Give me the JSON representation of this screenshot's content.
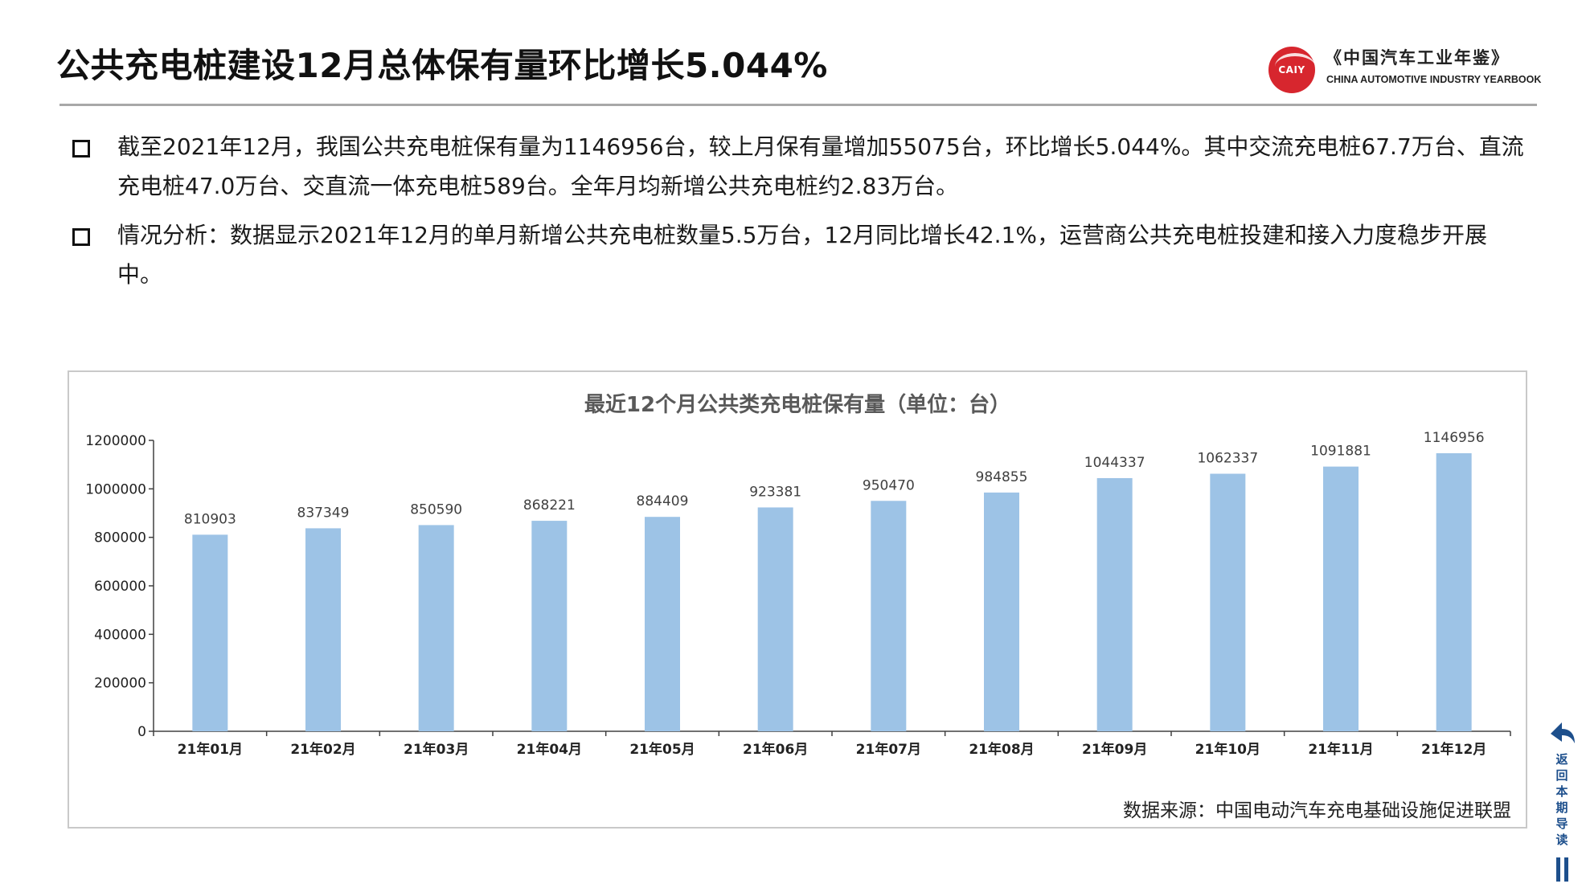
{
  "page": {
    "title": "公共充电桩建设12月总体保有量环比增长5.044%"
  },
  "logo": {
    "emblem": "CAIY",
    "cn": "《中国汽车工业年鉴》",
    "en": "CHINA AUTOMOTIVE INDUSTRY YEARBOOK",
    "color": "#d7262e"
  },
  "bullets": [
    "截至2021年12月，我国公共充电桩保有量为1146956台，较上月保有量增加55075台，环比增长5.044%。其中交流充电桩67.7万台、直流充电桩47.0万台、交直流一体充电桩589台。全年月均新增公共充电桩约2.83万台。",
    "情况分析：数据显示2021年12月的单月新增公共充电桩数量5.5万台，12月同比增长42.1%，运营商公共充电桩投建和接入力度稳步开展中。"
  ],
  "chart_data": {
    "type": "bar",
    "title": "最近12个月公共类充电桩保有量（单位：台）",
    "categories": [
      "21年01月",
      "21年02月",
      "21年03月",
      "21年04月",
      "21年05月",
      "21年06月",
      "21年07月",
      "21年08月",
      "21年09月",
      "21年10月",
      "21年11月",
      "21年12月"
    ],
    "values": [
      810903,
      837349,
      850590,
      868221,
      884409,
      923381,
      950470,
      984855,
      1044337,
      1062337,
      1091881,
      1146956
    ],
    "value_labels": [
      "810903",
      "837349",
      "850590",
      "868221",
      "884409",
      "923381",
      "950470",
      "984855",
      "1044337",
      "1062337",
      "1091881",
      "1146956"
    ],
    "yticks": [
      "0",
      "200000",
      "400000",
      "600000",
      "800000",
      "1000000",
      "1200000"
    ],
    "ylim": [
      0,
      1200000
    ],
    "grid": false,
    "legend": "none",
    "bar_color": "#9dc3e6",
    "source": "数据来源：中国电动汽车充电基础设施促进联盟"
  },
  "nav": {
    "back_label": "返回本期导读",
    "color": "#1d4f8c"
  }
}
